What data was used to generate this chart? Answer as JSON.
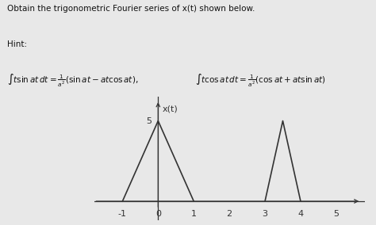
{
  "title": "x(t)",
  "xlim": [
    -1.8,
    5.8
  ],
  "ylim": [
    -1.2,
    6.5
  ],
  "xticks": [
    -1,
    0,
    1,
    2,
    3,
    4,
    5
  ],
  "ytick_val": 5,
  "ytick_label": "5",
  "triangle1": {
    "x": [
      -1,
      0,
      1
    ],
    "y": [
      0,
      5,
      0
    ]
  },
  "triangle2": {
    "x": [
      3,
      3.5,
      4
    ],
    "y": [
      0,
      5,
      0
    ]
  },
  "line_color": "#333333",
  "bg_color": "#e8e8e8",
  "axis_color": "#333333",
  "text_lines": [
    "Obtain the trigonometric Fourier series of x(t) shown below.",
    "Hint:",
    "∫t sin atdt = ¹/a² (sin at − at cos at),    ∫t cos atdt = ¹/a² (cos at + at sin at)"
  ],
  "text_fontsize": 7.5
}
